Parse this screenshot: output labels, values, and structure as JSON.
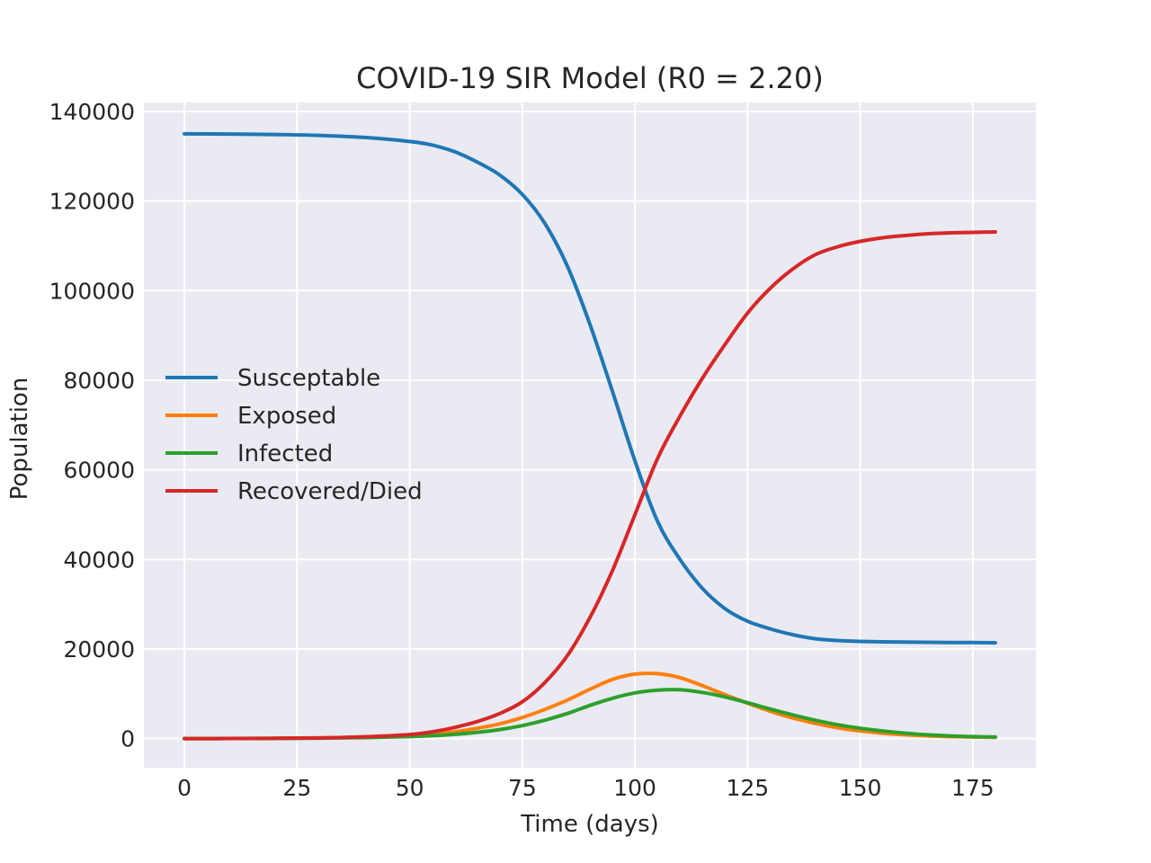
{
  "chart_data": {
    "type": "line",
    "title": "COVID-19 SIR Model (R0 = 2.20)",
    "xlabel": "Time (days)",
    "ylabel": "Population",
    "xlim": [
      -9,
      189
    ],
    "ylim": [
      -6500,
      142000
    ],
    "xticks": [
      0,
      25,
      50,
      75,
      100,
      125,
      150,
      175
    ],
    "yticks": [
      0,
      20000,
      40000,
      60000,
      80000,
      100000,
      120000,
      140000
    ],
    "grid": true,
    "background": "#eaeaf2",
    "legend_position": "center-left",
    "x": [
      0,
      10,
      20,
      30,
      40,
      50,
      55,
      60,
      65,
      70,
      75,
      80,
      85,
      90,
      95,
      100,
      105,
      110,
      115,
      120,
      125,
      130,
      135,
      140,
      145,
      150,
      155,
      160,
      165,
      170,
      175,
      180
    ],
    "series": [
      {
        "name": "Susceptable",
        "color": "#1f77b4",
        "values": [
          135000,
          134950,
          134850,
          134650,
          134200,
          133300,
          132500,
          131000,
          128700,
          125800,
          121500,
          115000,
          105500,
          92500,
          77500,
          62000,
          48500,
          40000,
          33500,
          29000,
          26200,
          24500,
          23200,
          22300,
          21900,
          21700,
          21600,
          21550,
          21500,
          21450,
          21430,
          21400
        ]
      },
      {
        "name": "Exposed",
        "color": "#ff7f0e",
        "values": [
          0,
          20,
          60,
          150,
          350,
          700,
          1000,
          1500,
          2300,
          3300,
          4700,
          6500,
          8600,
          11000,
          13200,
          14400,
          14500,
          13600,
          11800,
          9800,
          7900,
          6100,
          4600,
          3400,
          2400,
          1700,
          1200,
          850,
          600,
          450,
          350,
          280
        ]
      },
      {
        "name": "Infected",
        "color": "#2ca02c",
        "values": [
          0,
          15,
          40,
          100,
          230,
          450,
          650,
          950,
          1400,
          2000,
          2900,
          4100,
          5600,
          7400,
          9000,
          10200,
          10800,
          10900,
          10300,
          9300,
          8000,
          6600,
          5300,
          4100,
          3100,
          2300,
          1700,
          1200,
          850,
          600,
          450,
          350
        ]
      },
      {
        "name": "Recovered/Died",
        "color": "#d62728",
        "values": [
          0,
          20,
          60,
          150,
          400,
          900,
          1500,
          2500,
          3800,
          5600,
          8200,
          12500,
          18500,
          27000,
          37500,
          50000,
          62500,
          72000,
          80500,
          88000,
          95000,
          100500,
          104800,
          108000,
          109800,
          111000,
          111800,
          112300,
          112700,
          112900,
          113000,
          113100
        ]
      }
    ]
  }
}
